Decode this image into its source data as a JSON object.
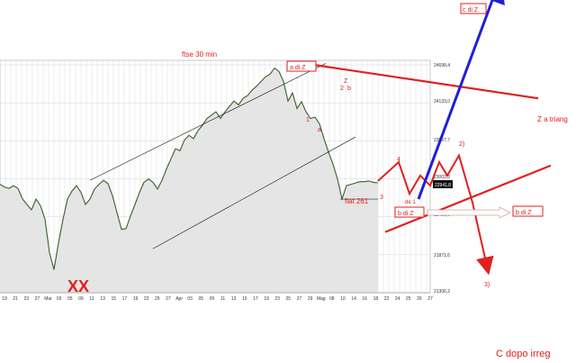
{
  "chart_data": {
    "type": "line",
    "title": "ftse 30 min",
    "y_ticks": [
      "24698,4",
      "24133,0",
      "23567,7",
      "23002,3",
      "22436,9",
      "21871,6",
      "21306,2"
    ],
    "last_price_label": "22941,8",
    "x_ticks": [
      "19",
      "21",
      "23",
      "27",
      "Mar",
      "03",
      "05",
      "09",
      "11",
      "13",
      "15",
      "17",
      "19",
      "23",
      "25",
      "27",
      "Apr",
      "03",
      "05",
      "09",
      "11",
      "13",
      "15",
      "17",
      "19",
      "23",
      "25",
      "27",
      "29",
      "Mag",
      "08",
      "10",
      "14",
      "16",
      "18",
      "22",
      "24",
      "25",
      "26",
      "27"
    ],
    "price_series": {
      "x": [
        0,
        5,
        10,
        15,
        20,
        25,
        30,
        35,
        40,
        45,
        50,
        55,
        60,
        65,
        70,
        75,
        80,
        85,
        90,
        95,
        100,
        105,
        110,
        115,
        120,
        125,
        130,
        135,
        140,
        145,
        150,
        155,
        160,
        165,
        170,
        175,
        180,
        185,
        190,
        195,
        200,
        205,
        210,
        215,
        220,
        225,
        230,
        235,
        240,
        245,
        250,
        255,
        260,
        265,
        270,
        275,
        280,
        285,
        290,
        295,
        300,
        305,
        310,
        315,
        320,
        325,
        330,
        335,
        340,
        345,
        350,
        355,
        360,
        365,
        370,
        375,
        380,
        385,
        390,
        395,
        400,
        405,
        410,
        415,
        420
      ],
      "values": [
        22920,
        22880,
        22860,
        22900,
        22860,
        22700,
        22620,
        22540,
        22700,
        22600,
        22400,
        21900,
        21650,
        22050,
        22400,
        22700,
        22820,
        22900,
        22800,
        22620,
        22700,
        22850,
        22920,
        22980,
        22930,
        22750,
        22500,
        22250,
        22260,
        22450,
        22620,
        22800,
        22950,
        23000,
        22950,
        22850,
        22980,
        23150,
        23300,
        23450,
        23420,
        23580,
        23650,
        23600,
        23720,
        23800,
        23900,
        23950,
        24000,
        23900,
        24000,
        24080,
        24160,
        24100,
        24200,
        24240,
        24320,
        24380,
        24450,
        24520,
        24560,
        24650,
        24600,
        24450,
        24160,
        24280,
        24050,
        24150,
        24000,
        23900,
        23920,
        23820,
        23600,
        23400,
        23220,
        23000,
        22700,
        22900,
        22920,
        22940,
        22960,
        22960,
        22970,
        22950,
        22942
      ]
    },
    "channel_lines": [
      {
        "x1": 100,
        "y1": 22980,
        "x2": 362,
        "y2": 24720
      },
      {
        "x1": 170,
        "y1": 21962,
        "x2": 395,
        "y2": 23625
      }
    ],
    "forecast_path": {
      "x": [
        420,
        443,
        455,
        467,
        478,
        488,
        497,
        510,
        525,
        541
      ],
      "values": [
        22970,
        23250,
        22780,
        23050,
        22900,
        23250,
        23050,
        23350,
        22650,
        21700
      ]
    },
    "blue_forecast": {
      "x": [
        465,
        552
      ],
      "values": [
        22700,
        25840
      ]
    },
    "z_triangle_lines": [
      {
        "x1": 348,
        "y1": 24700,
        "x2": 598,
        "y2": 24200
      },
      {
        "x1": 428,
        "y1": 22210,
        "x2": 612,
        "y2": 23200
      }
    ],
    "flat_level": {
      "x1": 378,
      "x2": 420,
      "value": 22700
    },
    "annotations": {
      "a_di_z": "a di Z",
      "c_di_z": "c di Z",
      "z_a_triang": "Z a triang",
      "label_2": "2",
      "label_2_paren": "2)",
      "label_3": "3",
      "label_3_paren": "3)",
      "label_4": "4",
      "label_1": "1",
      "label_a": "a",
      "label_b": "b",
      "label_zz": "Z",
      "label_de1": "de 1",
      "flat_261": "flat 261",
      "b_di_z_left": "b di Z",
      "b_di_z_right": "b di Z",
      "xx": "XX",
      "footer": "C dopo irreg"
    },
    "colors": {
      "price": "#3a5f2a",
      "area_fill": "#e5e5e5",
      "grid": "#cfcfcf",
      "channel": "#111111",
      "forecast": "#e02020",
      "blue": "#1f1fd8"
    },
    "ylim": [
      21306.2,
      24698.4
    ],
    "grid": true
  }
}
